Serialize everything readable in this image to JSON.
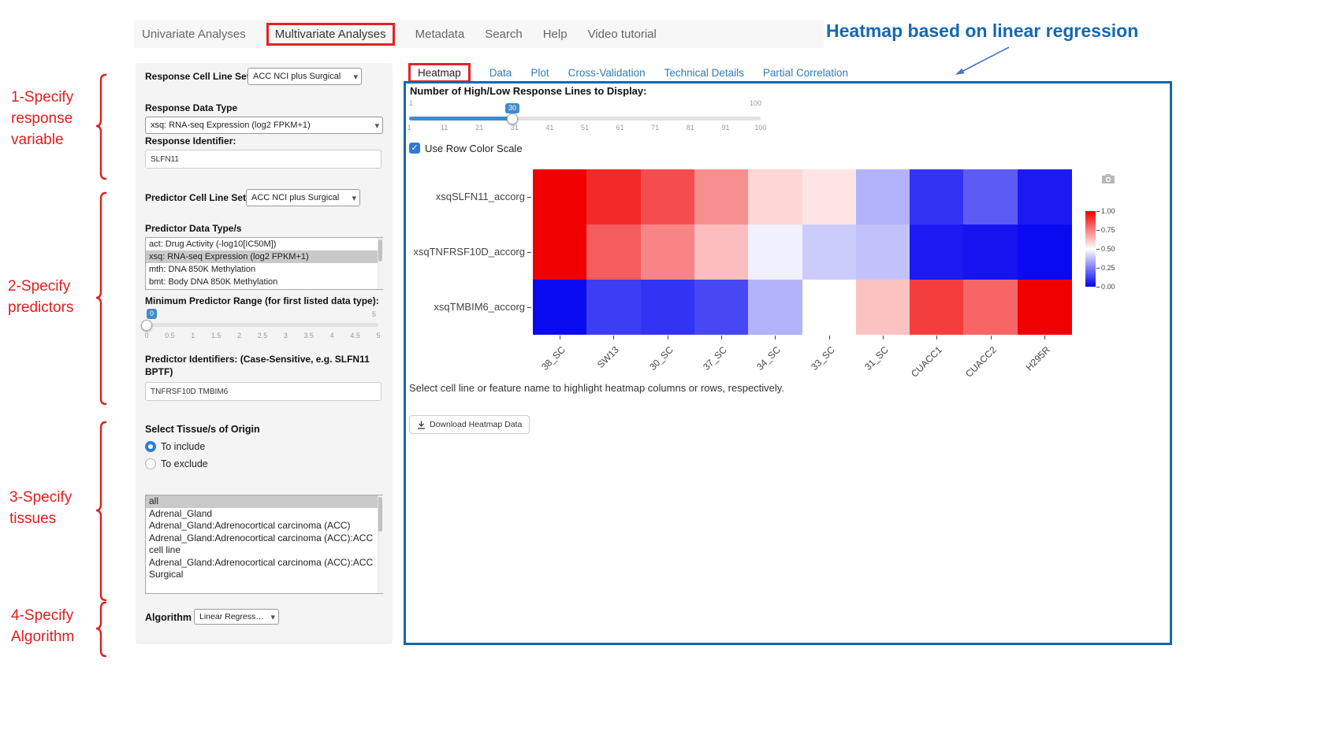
{
  "icons": {
    "chevron_down": "▾",
    "check": "✓"
  },
  "colors": {
    "annotation_red": "#e21d1d",
    "annotation_blue": "#1468b3",
    "main_border_blue": "#1268ad",
    "link_blue": "#2e7cb8",
    "slider_blue": "#428bca"
  },
  "nav": {
    "items": [
      "Univariate Analyses",
      "Multivariate Analyses",
      "Metadata",
      "Search",
      "Help",
      "Video tutorial"
    ],
    "active": "Multivariate Analyses"
  },
  "overlay": {
    "title": "Heatmap based on linear regression",
    "steps": [
      "1-Specify\nresponse\nvariable",
      "2-Specify\npredictors",
      "3-Specify\ntissues",
      "4-Specify\nAlgorithm"
    ]
  },
  "form": {
    "response_cell_line_set": {
      "label": "Response Cell Line Set",
      "value": "ACC NCI plus Surgical"
    },
    "response_data_type": {
      "label": "Response Data Type",
      "value": "xsq: RNA-seq Expression (log2 FPKM+1)"
    },
    "response_identifier": {
      "label": "Response Identifier:",
      "value": "SLFN11"
    },
    "predictor_cell_line_set": {
      "label": "Predictor Cell Line Set",
      "value": "ACC NCI plus Surgical"
    },
    "predictor_data_types": {
      "label": "Predictor Data Type/s",
      "options": [
        "act: Drug Activity (-log10[IC50M])",
        "xsq: RNA-seq Expression (log2 FPKM+1)",
        "mth: DNA 850K Methylation",
        "bmt: Body DNA 850K Methylation"
      ],
      "selected": "xsq: RNA-seq Expression (log2 FPKM+1)"
    },
    "min_predictor_range": {
      "label": "Minimum Predictor Range (for first listed data type):",
      "value": 0,
      "min": 0,
      "max": 5,
      "ticks": [
        "0",
        "0.5",
        "1",
        "1.5",
        "2",
        "2.5",
        "3",
        "3.5",
        "4",
        "4.5",
        "5"
      ]
    },
    "predictor_identifiers": {
      "label": "Predictor Identifiers: (Case-Sensitive, e.g. SLFN11 BPTF)",
      "value": "TNFRSF10D TMBIM6"
    },
    "tissue": {
      "label": "Select Tissue/s of Origin",
      "include_label": "To include",
      "exclude_label": "To exclude",
      "selected_mode": "To include",
      "options": [
        "all",
        "Adrenal_Gland",
        "Adrenal_Gland:Adrenocortical carcinoma (ACC)",
        "Adrenal_Gland:Adrenocortical carcinoma (ACC):ACC cell line",
        "Adrenal_Gland:Adrenocortical carcinoma (ACC):ACC Surgical"
      ],
      "selected": "all"
    },
    "algorithm": {
      "label": "Algorithm",
      "value": "Linear Regression"
    }
  },
  "main": {
    "tabs": [
      "Heatmap",
      "Data",
      "Plot",
      "Cross-Validation",
      "Technical Details",
      "Partial Correlation"
    ],
    "active_tab": "Heatmap",
    "lines_slider": {
      "label": "Number of High/Low Response Lines to Display:",
      "value": 30,
      "min": 1,
      "max": 100,
      "ticks": [
        "1",
        "11",
        "21",
        "31",
        "41",
        "51",
        "61",
        "71",
        "81",
        "91",
        "100"
      ]
    },
    "row_scale": {
      "label": "Use Row Color Scale",
      "checked": true
    },
    "hint": "Select cell line or feature name to highlight heatmap columns or rows, respectively.",
    "download_label": "Download Heatmap Data"
  },
  "chart_data": {
    "type": "heatmap",
    "rows": [
      "xsqSLFN11_accorg",
      "xsqTNFRSF10D_accorg",
      "xsqTMBIM6_accorg"
    ],
    "columns": [
      "38_SC",
      "SW13",
      "30_SC",
      "37_SC",
      "34_SC",
      "33_SC",
      "31_SC",
      "CUACC1",
      "CUACC2",
      "H295R"
    ],
    "values": [
      [
        1.0,
        0.92,
        0.85,
        0.72,
        0.58,
        0.55,
        0.35,
        0.1,
        0.18,
        0.05
      ],
      [
        1.0,
        0.82,
        0.74,
        0.63,
        0.47,
        0.4,
        0.38,
        0.05,
        0.04,
        0.02
      ],
      [
        0.02,
        0.12,
        0.1,
        0.14,
        0.35,
        0.5,
        0.62,
        0.88,
        0.8,
        1.0
      ]
    ],
    "value_range": [
      0,
      1
    ],
    "row_scaled": true,
    "colorbar_ticks": [
      "1.00",
      "0.75",
      "0.50",
      "0.25",
      "0.00"
    ],
    "colorscale": {
      "high": "#f00000",
      "mid": "#ffffff",
      "low": "#0000f0"
    }
  }
}
